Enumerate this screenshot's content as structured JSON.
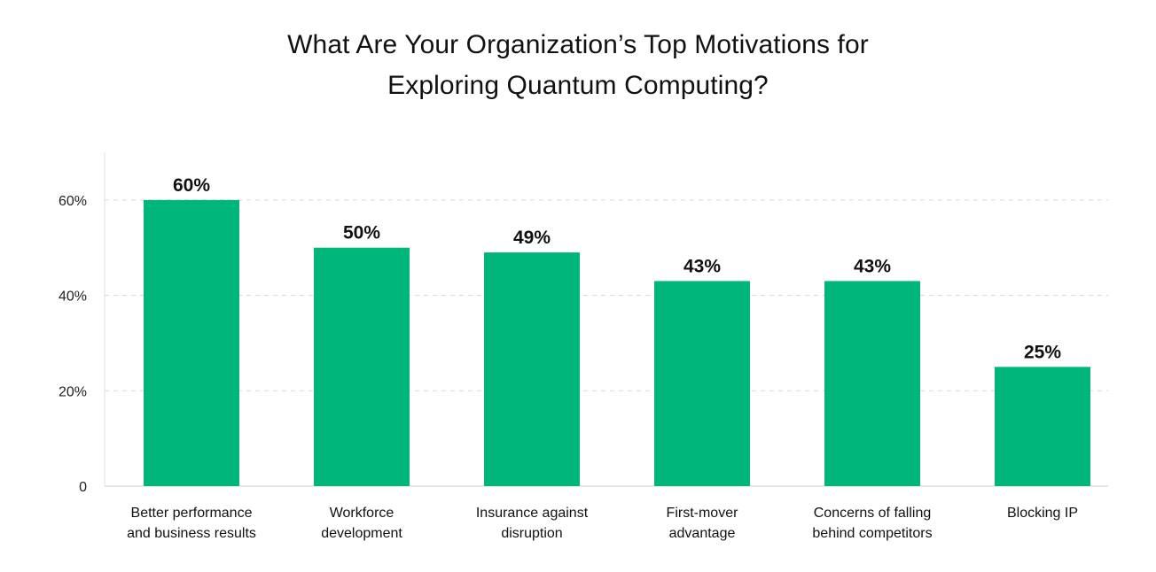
{
  "chart_data": {
    "type": "bar",
    "title_lines": [
      "What Are Your Organization’s Top Motivations for",
      "Exploring Quantum Computing?"
    ],
    "categories": [
      [
        "Better performance",
        "and business results"
      ],
      [
        "Workforce",
        "development"
      ],
      [
        "Insurance against",
        "disruption"
      ],
      [
        "First-mover",
        "advantage"
      ],
      [
        "Concerns of falling",
        "behind competitors"
      ],
      [
        "Blocking IP"
      ]
    ],
    "values": [
      60,
      50,
      49,
      43,
      43,
      25
    ],
    "value_labels": [
      "60%",
      "50%",
      "49%",
      "43%",
      "43%",
      "25%"
    ],
    "ylim": [
      0,
      70
    ],
    "yticks": [
      0,
      20,
      40,
      60
    ],
    "ytick_labels": [
      "0",
      "20%",
      "40%",
      "60%"
    ],
    "grid": true,
    "bar_color": "#00b67a"
  }
}
